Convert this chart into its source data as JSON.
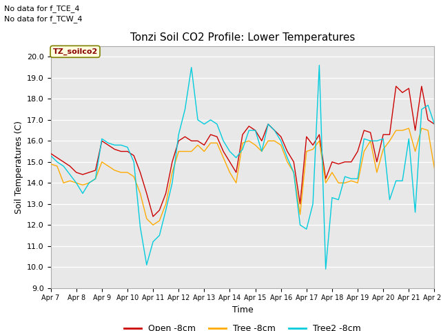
{
  "title": "Tonzi Soil CO2 Profile: Lower Temperatures",
  "ylabel": "Soil Temperatures (C)",
  "xlabel": "Time",
  "annotations": [
    "No data for f_TCE_4",
    "No data for f_TCW_4"
  ],
  "legend_label": "TZ_soilco2",
  "ylim": [
    9.0,
    20.5
  ],
  "yticks": [
    9.0,
    10.0,
    11.0,
    12.0,
    13.0,
    14.0,
    15.0,
    16.0,
    17.0,
    18.0,
    19.0,
    20.0
  ],
  "xtick_labels": [
    "Apr 7",
    "Apr 8",
    "Apr 9",
    "Apr 10",
    "Apr 11",
    "Apr 12",
    "Apr 13",
    "Apr 14",
    "Apr 15",
    "Apr 16",
    "Apr 17",
    "Apr 18",
    "Apr 19",
    "Apr 20",
    "Apr 21",
    "Apr 22"
  ],
  "fig_bg_color": "#ffffff",
  "plot_bg_color": "#e8e8e8",
  "line_colors": {
    "open": "#cc0000",
    "tree": "#ffaa00",
    "tree2": "#00ccdd"
  },
  "legend_entries": [
    "Open -8cm",
    "Tree -8cm",
    "Tree2 -8cm"
  ],
  "open_x": [
    0,
    0.5,
    1,
    1.5,
    2,
    2.5,
    3,
    3.5,
    4,
    4.5,
    5,
    5.5,
    6,
    6.5,
    7,
    7.5,
    8,
    8.5,
    9,
    9.5,
    10,
    10.5,
    11,
    11.5,
    12,
    12.5,
    13,
    13.5,
    14,
    14.5,
    15,
    15.5,
    16,
    16.5,
    17,
    17.5,
    18,
    18.5,
    19,
    19.5,
    20,
    20.5,
    21,
    21.5,
    22,
    22.5,
    23,
    23.5,
    24,
    24.5,
    25,
    25.5,
    26,
    26.5,
    27,
    27.5,
    28,
    28.5,
    29,
    29.5,
    30
  ],
  "open_y": [
    15.4,
    15.2,
    15.0,
    14.8,
    14.5,
    14.4,
    14.5,
    14.6,
    16.0,
    15.8,
    15.6,
    15.5,
    15.5,
    15.3,
    14.5,
    13.5,
    12.4,
    12.7,
    13.5,
    15.0,
    16.0,
    16.2,
    16.0,
    16.0,
    15.8,
    16.3,
    16.2,
    15.5,
    15.0,
    14.5,
    16.3,
    16.7,
    16.5,
    16.0,
    16.8,
    16.5,
    16.2,
    15.5,
    15.0,
    13.0,
    16.2,
    15.8,
    16.3,
    14.2,
    15.0,
    14.9,
    15.0,
    15.0,
    15.5,
    16.5,
    16.4,
    15.0,
    16.3,
    16.3,
    18.6,
    18.3,
    18.5,
    16.5,
    18.6,
    17.0,
    16.8
  ],
  "tree_x": [
    0,
    0.5,
    1,
    1.5,
    2,
    2.5,
    3,
    3.5,
    4,
    4.5,
    5,
    5.5,
    6,
    6.5,
    7,
    7.5,
    8,
    8.5,
    9,
    9.5,
    10,
    10.5,
    11,
    11.5,
    12,
    12.5,
    13,
    13.5,
    14,
    14.5,
    15,
    15.5,
    16,
    16.5,
    17,
    17.5,
    18,
    18.5,
    19,
    19.5,
    20,
    20.5,
    21,
    21.5,
    22,
    22.5,
    23,
    23.5,
    24,
    24.5,
    25,
    25.5,
    26,
    26.5,
    27,
    27.5,
    28,
    28.5,
    29,
    29.5,
    30
  ],
  "tree_y": [
    14.9,
    14.8,
    14.0,
    14.1,
    14.0,
    13.9,
    14.0,
    14.2,
    15.0,
    14.8,
    14.6,
    14.5,
    14.5,
    14.3,
    13.5,
    12.3,
    12.0,
    12.2,
    13.0,
    14.5,
    15.5,
    15.5,
    15.5,
    15.8,
    15.5,
    15.9,
    15.9,
    15.2,
    14.5,
    14.0,
    15.9,
    16.0,
    15.8,
    15.5,
    16.0,
    16.0,
    15.8,
    15.0,
    14.5,
    12.5,
    15.5,
    15.6,
    16.0,
    14.0,
    14.5,
    14.0,
    14.0,
    14.1,
    14.0,
    15.5,
    16.0,
    14.5,
    15.6,
    16.0,
    16.5,
    16.5,
    16.6,
    15.5,
    16.6,
    16.5,
    14.7
  ],
  "tree2_x": [
    0,
    0.5,
    1,
    1.5,
    2,
    2.5,
    3,
    3.5,
    4,
    4.5,
    5,
    5.5,
    6,
    6.5,
    7,
    7.5,
    8,
    8.5,
    9,
    9.5,
    10,
    10.5,
    11,
    11.5,
    12,
    12.5,
    13,
    13.5,
    14,
    14.5,
    15,
    15.5,
    16,
    16.5,
    17,
    17.5,
    18,
    18.5,
    19,
    19.5,
    20,
    20.5,
    21,
    21.5,
    22,
    22.5,
    23,
    23.5,
    24,
    24.5,
    25,
    25.5,
    26,
    26.5,
    27,
    27.5,
    28,
    28.5,
    29,
    29.5,
    30
  ],
  "tree2_y": [
    15.3,
    15.0,
    14.8,
    14.4,
    14.0,
    13.5,
    14.0,
    14.2,
    16.1,
    15.9,
    15.8,
    15.8,
    15.7,
    15.0,
    11.9,
    10.1,
    11.2,
    11.5,
    12.7,
    14.0,
    16.3,
    17.5,
    19.5,
    17.0,
    16.8,
    17.0,
    16.8,
    16.0,
    15.5,
    15.2,
    15.6,
    16.5,
    16.5,
    15.5,
    16.8,
    16.5,
    16.0,
    15.2,
    14.5,
    12.0,
    11.8,
    13.0,
    19.6,
    9.9,
    13.3,
    13.2,
    14.3,
    14.2,
    14.2,
    16.1,
    16.0,
    16.0,
    16.1,
    13.2,
    14.1,
    14.1,
    16.1,
    12.6,
    17.5,
    17.7,
    16.8
  ]
}
